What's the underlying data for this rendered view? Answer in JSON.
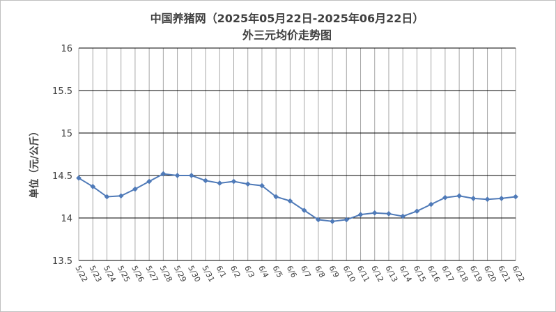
{
  "chart_data": {
    "type": "line",
    "title_line1": "中国养猪网（2025年05月22日-2025年06月22日）",
    "title_line2": "外三元均价走势图",
    "xlabel": "",
    "ylabel": "单位（元/公斤）",
    "ylim": [
      13.5,
      16
    ],
    "yticks": [
      "13.5",
      "14",
      "14.5",
      "15",
      "15.5",
      "16"
    ],
    "categories": [
      "5/22",
      "5/23",
      "5/24",
      "5/25",
      "5/26",
      "5/27",
      "5/28",
      "5/29",
      "5/30",
      "5/31",
      "6/1",
      "6/2",
      "6/3",
      "6/4",
      "6/5",
      "6/6",
      "6/7",
      "6/8",
      "6/9",
      "6/10",
      "6/11",
      "6/12",
      "6/13",
      "6/14",
      "6/15",
      "6/16",
      "6/17",
      "6/18",
      "6/19",
      "6/20",
      "6/21",
      "6/22"
    ],
    "series": [
      {
        "values": [
          14.47,
          14.37,
          14.25,
          14.26,
          14.34,
          14.43,
          14.52,
          14.5,
          14.5,
          14.44,
          14.41,
          14.43,
          14.4,
          14.38,
          14.25,
          14.2,
          14.09,
          13.98,
          13.96,
          13.98,
          14.04,
          14.06,
          14.05,
          14.02,
          14.08,
          14.16,
          14.24,
          14.26,
          14.23,
          14.22,
          14.23,
          14.25
        ]
      }
    ],
    "grid": "vertical-and-horizontal",
    "colors": {
      "line": "#4f7ab8",
      "grid": "#000000",
      "minor_grid": "#a6a6a6"
    }
  }
}
